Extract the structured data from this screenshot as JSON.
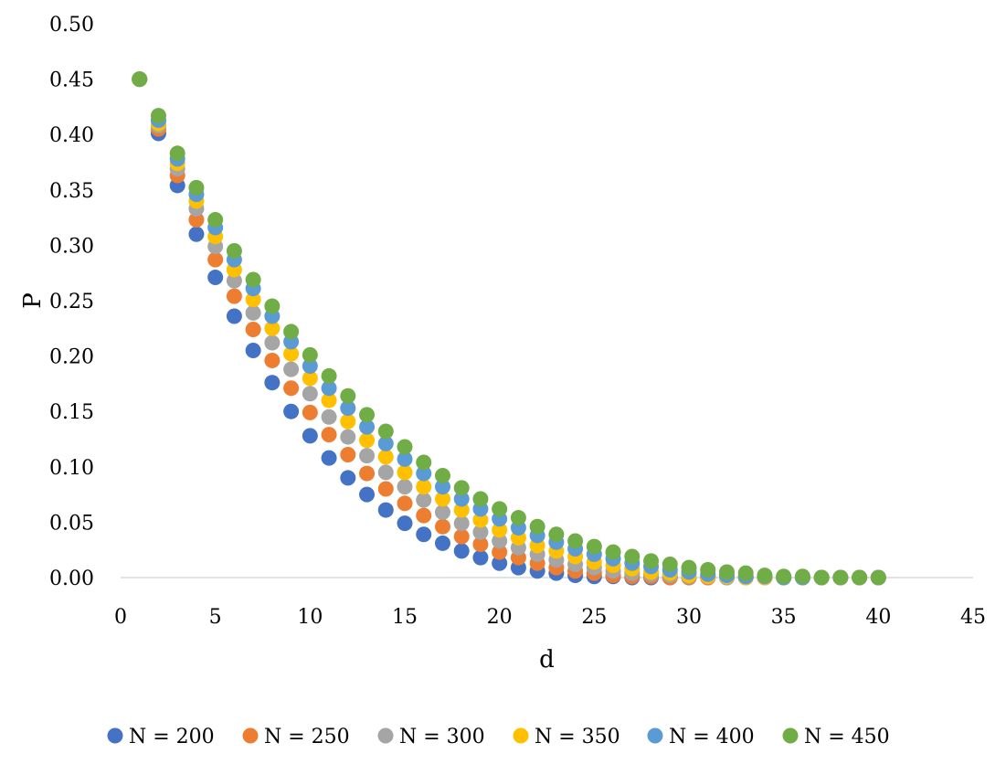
{
  "chart_data": {
    "type": "scatter",
    "title": "",
    "xlabel": "d",
    "ylabel": "P",
    "xlim": [
      0,
      45
    ],
    "ylim": [
      0,
      0.5
    ],
    "x_ticks": [
      "0",
      "5",
      "10",
      "15",
      "20",
      "25",
      "30",
      "35",
      "40",
      "45"
    ],
    "y_ticks": [
      "0.00",
      "0.05",
      "0.10",
      "0.15",
      "0.20",
      "0.25",
      "0.30",
      "0.35",
      "0.40",
      "0.45",
      "0.50"
    ],
    "grid": false,
    "legend_position": "bottom",
    "x": [
      1,
      2,
      3,
      4,
      5,
      6,
      7,
      8,
      9,
      10,
      11,
      12,
      13,
      14,
      15,
      16,
      17,
      18,
      19,
      20,
      21,
      22,
      23,
      24,
      25,
      26,
      27,
      28,
      29,
      30,
      31,
      32,
      33,
      34,
      35,
      36,
      37,
      38,
      39,
      40
    ],
    "series": [
      {
        "name": "N = 200",
        "color": "#4472C4",
        "values": [
          0.45,
          0.401,
          0.354,
          0.31,
          0.271,
          0.236,
          0.205,
          0.176,
          0.15,
          0.128,
          0.108,
          0.09,
          0.075,
          0.061,
          0.049,
          0.039,
          0.031,
          0.024,
          0.018,
          0.013,
          0.009,
          0.006,
          0.004,
          0.002,
          0.001,
          0.001,
          0.0,
          0.0,
          0.0,
          0.0,
          0.0,
          0.0,
          0.0,
          0.0,
          0.0,
          0.0,
          0.0,
          0.0,
          0.0,
          0.0
        ]
      },
      {
        "name": "N = 250",
        "color": "#ED7D31",
        "values": [
          0.45,
          0.405,
          0.363,
          0.323,
          0.287,
          0.254,
          0.224,
          0.196,
          0.171,
          0.149,
          0.129,
          0.111,
          0.094,
          0.08,
          0.067,
          0.056,
          0.046,
          0.037,
          0.03,
          0.023,
          0.018,
          0.013,
          0.009,
          0.006,
          0.004,
          0.002,
          0.001,
          0.001,
          0.0,
          0.0,
          0.0,
          0.0,
          0.0,
          0.0,
          0.0,
          0.0,
          0.0,
          0.0,
          0.0,
          0.0
        ]
      },
      {
        "name": "N = 300",
        "color": "#A5A5A5",
        "values": [
          0.45,
          0.408,
          0.369,
          0.333,
          0.299,
          0.268,
          0.239,
          0.212,
          0.188,
          0.166,
          0.145,
          0.127,
          0.11,
          0.095,
          0.082,
          0.07,
          0.059,
          0.049,
          0.041,
          0.033,
          0.027,
          0.021,
          0.016,
          0.012,
          0.009,
          0.006,
          0.004,
          0.003,
          0.002,
          0.001,
          0.001,
          0.0,
          0.0,
          0.0,
          0.0,
          0.0,
          0.0,
          0.0,
          0.0,
          0.0
        ]
      },
      {
        "name": "N = 350",
        "color": "#FFC000",
        "values": [
          0.45,
          0.41,
          0.374,
          0.34,
          0.308,
          0.278,
          0.251,
          0.225,
          0.202,
          0.18,
          0.16,
          0.141,
          0.124,
          0.109,
          0.095,
          0.082,
          0.071,
          0.061,
          0.052,
          0.043,
          0.036,
          0.029,
          0.024,
          0.019,
          0.014,
          0.011,
          0.008,
          0.005,
          0.004,
          0.002,
          0.001,
          0.001,
          0.0,
          0.0,
          0.0,
          0.0,
          0.0,
          0.0,
          0.0,
          0.0
        ]
      },
      {
        "name": "N = 400",
        "color": "#5B9BD5",
        "values": [
          0.45,
          0.413,
          0.378,
          0.346,
          0.316,
          0.287,
          0.261,
          0.236,
          0.213,
          0.191,
          0.171,
          0.153,
          0.136,
          0.121,
          0.107,
          0.094,
          0.082,
          0.071,
          0.062,
          0.053,
          0.045,
          0.038,
          0.032,
          0.026,
          0.021,
          0.017,
          0.013,
          0.01,
          0.007,
          0.005,
          0.003,
          0.002,
          0.001,
          0.001,
          0.0,
          0.0,
          0.0,
          0.0,
          0.0,
          0.0
        ]
      },
      {
        "name": "N = 450",
        "color": "#70AD47",
        "values": [
          0.45,
          0.417,
          0.383,
          0.352,
          0.323,
          0.295,
          0.269,
          0.245,
          0.222,
          0.201,
          0.182,
          0.164,
          0.147,
          0.132,
          0.118,
          0.104,
          0.092,
          0.081,
          0.071,
          0.062,
          0.054,
          0.046,
          0.039,
          0.033,
          0.028,
          0.023,
          0.019,
          0.015,
          0.012,
          0.009,
          0.007,
          0.005,
          0.004,
          0.002,
          0.001,
          0.001,
          0.0,
          0.0,
          0.0,
          0.0
        ]
      }
    ]
  }
}
